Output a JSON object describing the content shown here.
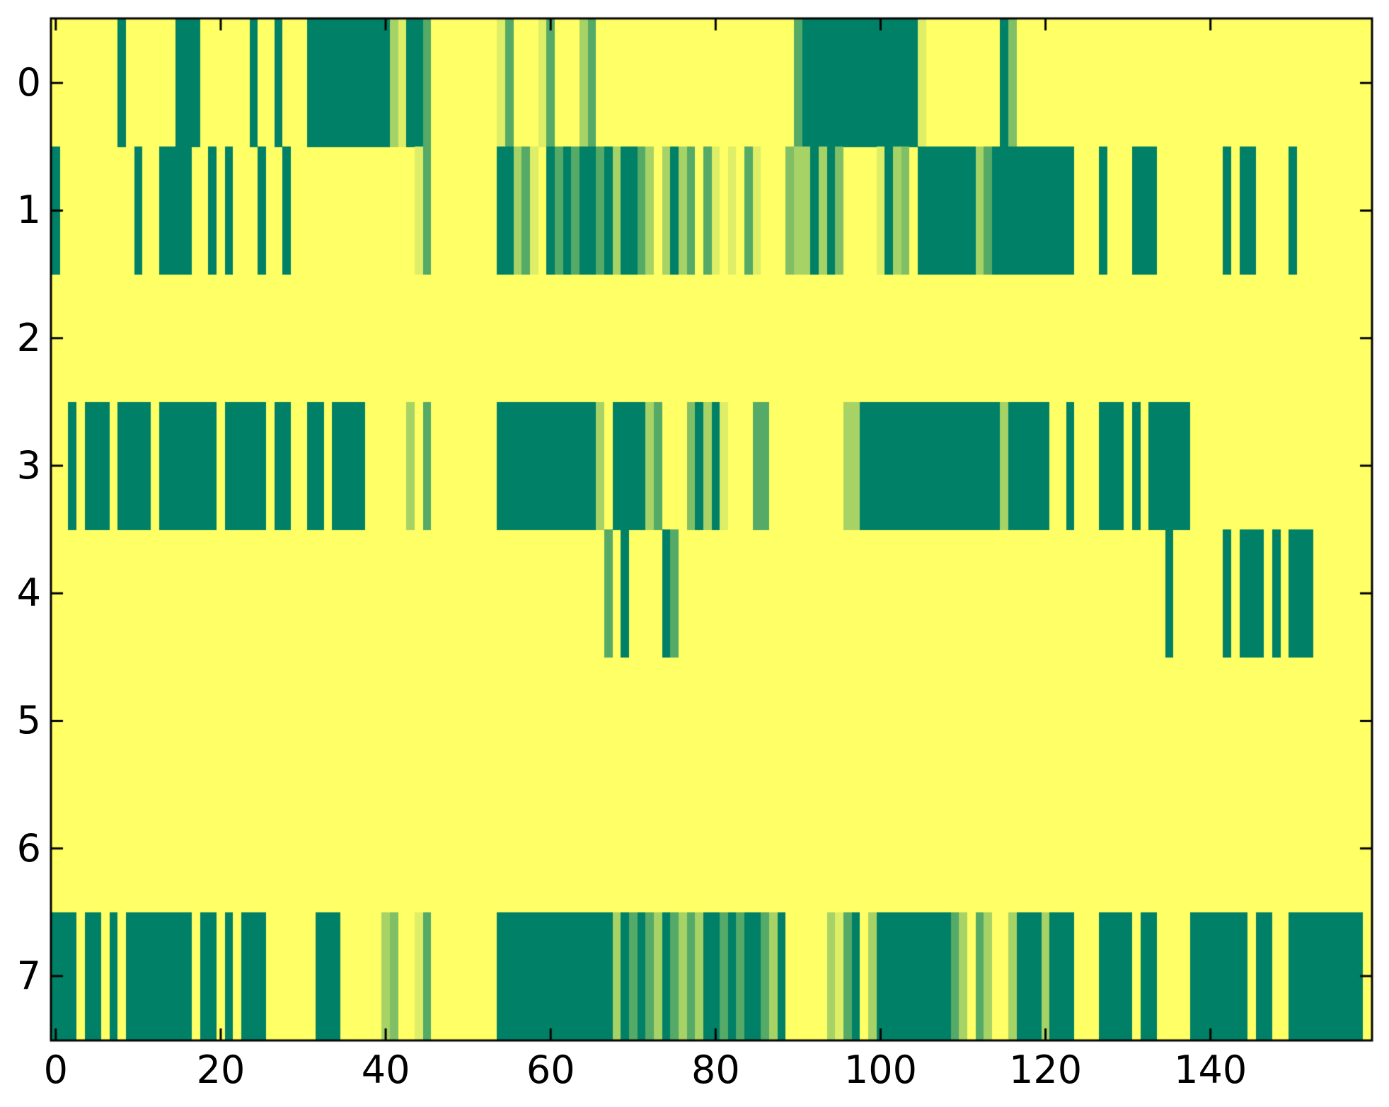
{
  "chart_data": {
    "type": "heatmap",
    "title": "",
    "xlabel": "",
    "ylabel": "",
    "n_rows": 8,
    "n_cols": 160,
    "x_range": [
      -0.5,
      159.5
    ],
    "y_range": [
      -0.5,
      7.5
    ],
    "x_ticks": [
      0,
      20,
      40,
      60,
      80,
      100,
      120,
      140
    ],
    "y_ticks": [
      0,
      1,
      2,
      3,
      4,
      5,
      6,
      7
    ],
    "grid": false,
    "legend": false,
    "colormap": "summer",
    "axis_color": "#000000",
    "background_color": "#ffffff",
    "value_colors": {
      "1": "#FFFF66",
      "0.87": "#DEEE66",
      "0.65": "#A6D266",
      "0.5": "#80BF66",
      "0.33": "#54AA66",
      "0": "#008066"
    },
    "default_value": 1,
    "rows": [
      {
        "row": 0,
        "segments": [
          [
            8,
            8,
            0
          ],
          [
            15,
            17,
            0
          ],
          [
            24,
            24,
            0
          ],
          [
            27,
            27,
            0
          ],
          [
            31,
            40,
            0
          ],
          [
            41,
            41,
            0.65
          ],
          [
            42,
            42,
            0.87
          ],
          [
            43,
            44,
            0
          ],
          [
            45,
            45,
            0.33
          ],
          [
            54,
            54,
            0.87
          ],
          [
            55,
            55,
            0.33
          ],
          [
            59,
            59,
            0.87
          ],
          [
            60,
            60,
            0.33
          ],
          [
            64,
            64,
            0.65
          ],
          [
            65,
            65,
            0.33
          ],
          [
            90,
            90,
            0.33
          ],
          [
            91,
            104,
            0
          ],
          [
            105,
            105,
            0.87
          ],
          [
            115,
            115,
            0
          ],
          [
            116,
            116,
            0.5
          ]
        ]
      },
      {
        "row": 1,
        "segments": [
          [
            0,
            0,
            0
          ],
          [
            10,
            10,
            0
          ],
          [
            13,
            16,
            0
          ],
          [
            19,
            19,
            0
          ],
          [
            21,
            21,
            0
          ],
          [
            25,
            25,
            0
          ],
          [
            28,
            28,
            0
          ],
          [
            44,
            44,
            0.87
          ],
          [
            45,
            45,
            0.33
          ],
          [
            54,
            55,
            0
          ],
          [
            56,
            56,
            0.65
          ],
          [
            57,
            57,
            0.33
          ],
          [
            58,
            58,
            0.87
          ],
          [
            60,
            60,
            0
          ],
          [
            61,
            61,
            0.33
          ],
          [
            62,
            62,
            0
          ],
          [
            63,
            63,
            0.33
          ],
          [
            64,
            65,
            0
          ],
          [
            66,
            66,
            0.33
          ],
          [
            67,
            67,
            0
          ],
          [
            68,
            68,
            0.65
          ],
          [
            69,
            70,
            0
          ],
          [
            71,
            71,
            0.33
          ],
          [
            72,
            72,
            0.65
          ],
          [
            74,
            74,
            0.65
          ],
          [
            75,
            75,
            0
          ],
          [
            76,
            76,
            0.65
          ],
          [
            77,
            77,
            0.33
          ],
          [
            79,
            79,
            0.33
          ],
          [
            80,
            80,
            0.87
          ],
          [
            82,
            82,
            0.87
          ],
          [
            84,
            84,
            0.33
          ],
          [
            85,
            85,
            0.87
          ],
          [
            89,
            89,
            0.5
          ],
          [
            90,
            91,
            0.65
          ],
          [
            92,
            92,
            0
          ],
          [
            93,
            93,
            0.65
          ],
          [
            94,
            94,
            0
          ],
          [
            95,
            95,
            0.5
          ],
          [
            100,
            100,
            0.87
          ],
          [
            101,
            101,
            0
          ],
          [
            102,
            102,
            0.65
          ],
          [
            103,
            103,
            0.5
          ],
          [
            105,
            111,
            0
          ],
          [
            112,
            112,
            0.65
          ],
          [
            113,
            113,
            0.33
          ],
          [
            114,
            123,
            0
          ],
          [
            127,
            127,
            0
          ],
          [
            131,
            133,
            0
          ],
          [
            142,
            142,
            0
          ],
          [
            144,
            145,
            0
          ],
          [
            150,
            150,
            0
          ]
        ]
      },
      {
        "row": 2,
        "segments": []
      },
      {
        "row": 3,
        "segments": [
          [
            2,
            2,
            0
          ],
          [
            4,
            6,
            0
          ],
          [
            8,
            11,
            0
          ],
          [
            13,
            19,
            0
          ],
          [
            21,
            25,
            0
          ],
          [
            27,
            28,
            0
          ],
          [
            31,
            32,
            0
          ],
          [
            34,
            37,
            0
          ],
          [
            43,
            43,
            0.65
          ],
          [
            45,
            45,
            0.33
          ],
          [
            54,
            65,
            0
          ],
          [
            66,
            66,
            0.65
          ],
          [
            68,
            71,
            0
          ],
          [
            72,
            72,
            0.65
          ],
          [
            73,
            73,
            0.33
          ],
          [
            77,
            77,
            0.5
          ],
          [
            78,
            78,
            0
          ],
          [
            79,
            79,
            0.65
          ],
          [
            80,
            80,
            0
          ],
          [
            81,
            81,
            0.87
          ],
          [
            85,
            86,
            0.33
          ],
          [
            96,
            97,
            0.65
          ],
          [
            98,
            114,
            0
          ],
          [
            115,
            115,
            0.65
          ],
          [
            116,
            120,
            0
          ],
          [
            123,
            123,
            0
          ],
          [
            127,
            129,
            0
          ],
          [
            131,
            131,
            0
          ],
          [
            133,
            137,
            0
          ]
        ]
      },
      {
        "row": 4,
        "segments": [
          [
            67,
            67,
            0.33
          ],
          [
            69,
            69,
            0
          ],
          [
            74,
            74,
            0
          ],
          [
            75,
            75,
            0.33
          ],
          [
            135,
            135,
            0
          ],
          [
            142,
            142,
            0
          ],
          [
            144,
            146,
            0
          ],
          [
            148,
            148,
            0
          ],
          [
            150,
            152,
            0
          ]
        ]
      },
      {
        "row": 5,
        "segments": []
      },
      {
        "row": 6,
        "segments": []
      },
      {
        "row": 7,
        "segments": [
          [
            0,
            2,
            0
          ],
          [
            4,
            5,
            0
          ],
          [
            7,
            7,
            0
          ],
          [
            9,
            16,
            0
          ],
          [
            18,
            19,
            0
          ],
          [
            21,
            21,
            0
          ],
          [
            23,
            25,
            0
          ],
          [
            32,
            34,
            0
          ],
          [
            40,
            40,
            0.65
          ],
          [
            41,
            41,
            0.5
          ],
          [
            44,
            44,
            0.87
          ],
          [
            45,
            45,
            0.33
          ],
          [
            54,
            67,
            0
          ],
          [
            68,
            68,
            0.65
          ],
          [
            69,
            69,
            0
          ],
          [
            70,
            70,
            0.33
          ],
          [
            71,
            71,
            0
          ],
          [
            72,
            72,
            0.33
          ],
          [
            73,
            73,
            0.65
          ],
          [
            74,
            74,
            0
          ],
          [
            75,
            75,
            0.33
          ],
          [
            76,
            76,
            0.65
          ],
          [
            77,
            77,
            0.33
          ],
          [
            78,
            78,
            0.65
          ],
          [
            79,
            80,
            0
          ],
          [
            81,
            81,
            0.33
          ],
          [
            82,
            82,
            0
          ],
          [
            83,
            83,
            0.33
          ],
          [
            84,
            85,
            0
          ],
          [
            86,
            86,
            0.33
          ],
          [
            87,
            87,
            0.65
          ],
          [
            88,
            88,
            0
          ],
          [
            94,
            94,
            0.65
          ],
          [
            95,
            95,
            0.87
          ],
          [
            96,
            96,
            0.33
          ],
          [
            97,
            97,
            0
          ],
          [
            99,
            99,
            0.65
          ],
          [
            100,
            108,
            0
          ],
          [
            109,
            109,
            0.33
          ],
          [
            110,
            110,
            0.65
          ],
          [
            112,
            112,
            0.33
          ],
          [
            113,
            113,
            0.65
          ],
          [
            116,
            116,
            0.65
          ],
          [
            117,
            119,
            0
          ],
          [
            120,
            120,
            0.65
          ],
          [
            121,
            123,
            0
          ],
          [
            127,
            130,
            0
          ],
          [
            132,
            133,
            0
          ],
          [
            138,
            144,
            0
          ],
          [
            146,
            147,
            0
          ],
          [
            150,
            158,
            0
          ]
        ]
      }
    ]
  }
}
